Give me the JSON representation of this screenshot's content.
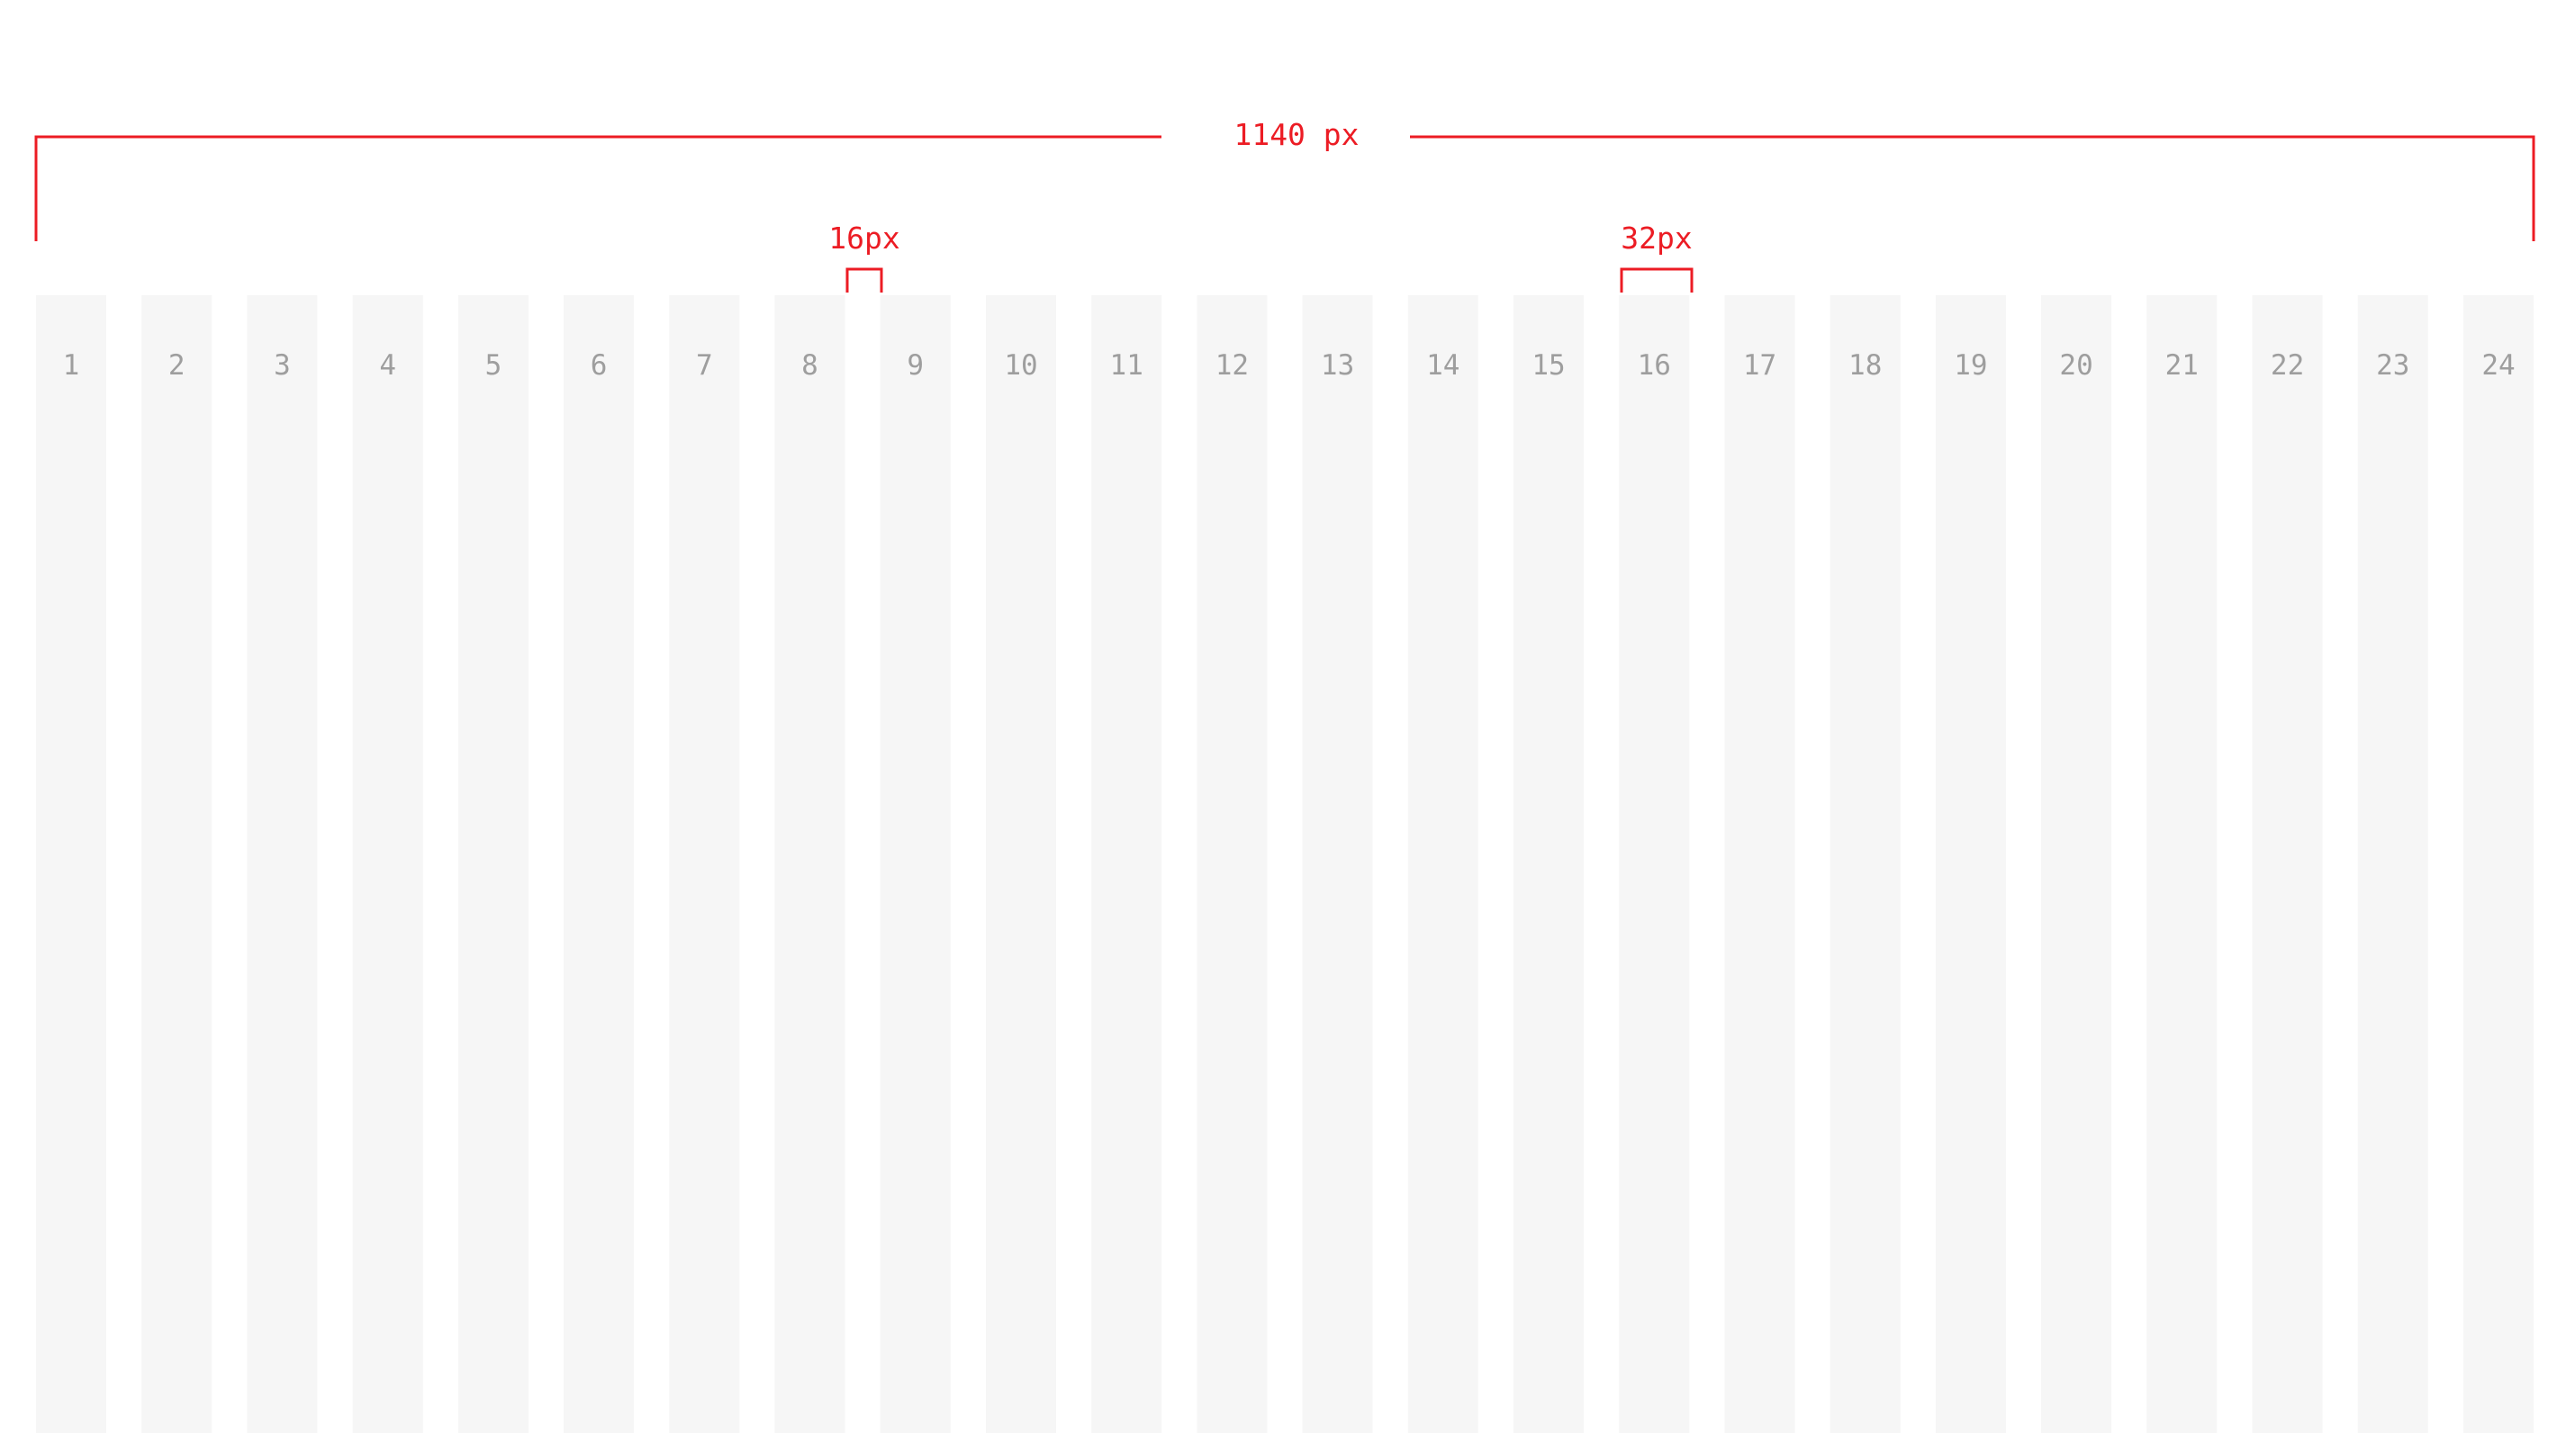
{
  "colors": {
    "background": "#ffffff",
    "column_fill": "#f6f6f6",
    "column_label": "#9e9e9e",
    "annotation": "#ec1c24"
  },
  "grid": {
    "columns": [
      "1",
      "2",
      "3",
      "4",
      "5",
      "6",
      "7",
      "8",
      "9",
      "10",
      "11",
      "12",
      "13",
      "14",
      "15",
      "16",
      "17",
      "18",
      "19",
      "20",
      "21",
      "22",
      "23",
      "24"
    ]
  },
  "annotations": {
    "total_width_label": "1140 px",
    "gutter_label": "16px",
    "column_width_label": "32px"
  }
}
